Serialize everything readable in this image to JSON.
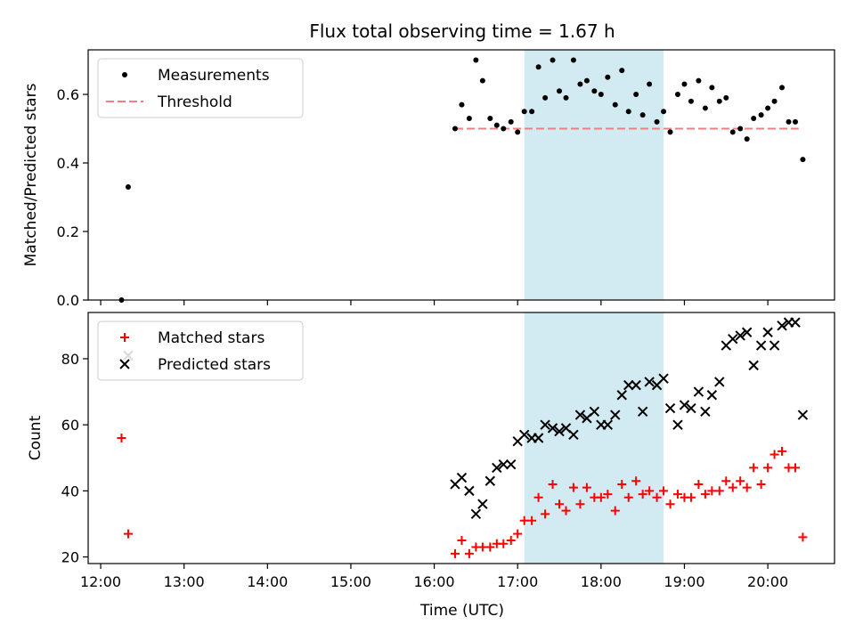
{
  "title": "Flux total observing time = 1.67 h",
  "x_axis": {
    "label": "Time (UTC)",
    "range_hours": [
      11.85,
      20.8
    ],
    "ticks": [
      12,
      13,
      14,
      15,
      16,
      17,
      18,
      19,
      20
    ],
    "tick_labels": [
      "12:00",
      "13:00",
      "14:00",
      "15:00",
      "16:00",
      "17:00",
      "18:00",
      "19:00",
      "20:00"
    ]
  },
  "colors": {
    "measurements": "#000000",
    "threshold": "#f08080",
    "matched": "#ff0000",
    "predicted": "#000000",
    "shaded_interval": "#add8e6"
  },
  "chart_data": [
    {
      "type": "scatter",
      "ylabel": "Matched/Predicted stars",
      "ylim": [
        0,
        0.73
      ],
      "yticks": [
        0.0,
        0.2,
        0.4,
        0.6
      ],
      "ytick_labels": [
        "0.0",
        "0.2",
        "0.4",
        "0.6"
      ],
      "legend_position": "top-left",
      "shaded_interval": [
        17.08,
        18.75
      ],
      "threshold": {
        "name": "Threshold",
        "value": 0.5,
        "x": [
          16.25,
          20.37
        ]
      },
      "series": [
        {
          "name": "Measurements",
          "marker": "dot",
          "x": [
            12.25,
            12.33,
            16.25,
            16.33,
            16.42,
            16.5,
            16.58,
            16.67,
            16.75,
            16.83,
            16.92,
            17.0,
            17.08,
            17.17,
            17.25,
            17.33,
            17.42,
            17.5,
            17.58,
            17.67,
            17.75,
            17.83,
            17.92,
            18.0,
            18.08,
            18.17,
            18.25,
            18.33,
            18.42,
            18.5,
            18.58,
            18.67,
            18.75,
            18.83,
            18.92,
            19.0,
            19.08,
            19.17,
            19.25,
            19.33,
            19.42,
            19.5,
            19.58,
            19.67,
            19.75,
            19.83,
            19.92,
            20.0,
            20.08,
            20.17,
            20.25,
            20.33,
            20.42
          ],
          "y": [
            0.0,
            0.33,
            0.5,
            0.57,
            0.53,
            0.7,
            0.64,
            0.53,
            0.51,
            0.5,
            0.52,
            0.49,
            0.55,
            0.55,
            0.68,
            0.59,
            0.7,
            0.61,
            0.59,
            0.7,
            0.63,
            0.64,
            0.61,
            0.6,
            0.65,
            0.57,
            0.67,
            0.55,
            0.6,
            0.54,
            0.63,
            0.52,
            0.55,
            0.49,
            0.6,
            0.63,
            0.58,
            0.64,
            0.56,
            0.62,
            0.58,
            0.59,
            0.49,
            0.5,
            0.47,
            0.53,
            0.54,
            0.56,
            0.58,
            0.62,
            0.52,
            0.52,
            0.41
          ]
        }
      ]
    },
    {
      "type": "scatter",
      "xlabel": "Time (UTC)",
      "ylabel": "Count",
      "ylim": [
        18,
        94
      ],
      "yticks": [
        20,
        40,
        60,
        80
      ],
      "ytick_labels": [
        "20",
        "40",
        "60",
        "80"
      ],
      "legend_position": "top-left",
      "shaded_interval": [
        17.08,
        18.75
      ],
      "series": [
        {
          "name": "Matched stars",
          "marker": "plus",
          "x": [
            12.25,
            12.33,
            16.25,
            16.33,
            16.42,
            16.5,
            16.58,
            16.67,
            16.75,
            16.83,
            16.92,
            17.0,
            17.08,
            17.17,
            17.25,
            17.33,
            17.42,
            17.5,
            17.58,
            17.67,
            17.75,
            17.83,
            17.92,
            18.0,
            18.08,
            18.17,
            18.25,
            18.33,
            18.42,
            18.5,
            18.58,
            18.67,
            18.75,
            18.83,
            18.92,
            19.0,
            19.08,
            19.17,
            19.25,
            19.33,
            19.42,
            19.5,
            19.58,
            19.67,
            19.75,
            19.83,
            19.92,
            20.0,
            20.08,
            20.17,
            20.25,
            20.33,
            20.42
          ],
          "y": [
            56,
            27,
            21,
            25,
            21,
            23,
            23,
            23,
            24,
            24,
            25,
            27,
            31,
            31,
            38,
            33,
            42,
            36,
            34,
            41,
            36,
            41,
            38,
            38,
            39,
            34,
            42,
            38,
            43,
            39,
            40,
            38,
            40,
            36,
            39,
            38,
            38,
            42,
            39,
            40,
            40,
            43,
            41,
            43,
            41,
            47,
            42,
            47,
            51,
            52,
            47,
            47,
            26
          ]
        },
        {
          "name": "Predicted stars",
          "marker": "x",
          "x": [
            12.33,
            16.25,
            16.33,
            16.42,
            16.5,
            16.58,
            16.67,
            16.75,
            16.83,
            16.92,
            17.0,
            17.08,
            17.17,
            17.25,
            17.33,
            17.42,
            17.5,
            17.58,
            17.67,
            17.75,
            17.83,
            17.92,
            18.0,
            18.08,
            18.17,
            18.25,
            18.33,
            18.42,
            18.5,
            18.58,
            18.67,
            18.75,
            18.83,
            18.92,
            19.0,
            19.08,
            19.17,
            19.25,
            19.33,
            19.42,
            19.5,
            19.58,
            19.67,
            19.75,
            19.83,
            19.92,
            20.0,
            20.08,
            20.17,
            20.25,
            20.33,
            20.42
          ],
          "y": [
            81,
            42,
            44,
            40,
            33,
            36,
            43,
            47,
            48,
            48,
            55,
            57,
            56,
            56,
            60,
            59,
            58,
            59,
            57,
            63,
            62,
            64,
            60,
            60,
            63,
            69,
            72,
            72,
            64,
            73,
            72,
            74,
            65,
            60,
            66,
            65,
            70,
            64,
            69,
            73,
            84,
            86,
            87,
            88,
            78,
            84,
            88,
            84,
            90,
            91,
            91,
            63
          ]
        }
      ]
    }
  ]
}
